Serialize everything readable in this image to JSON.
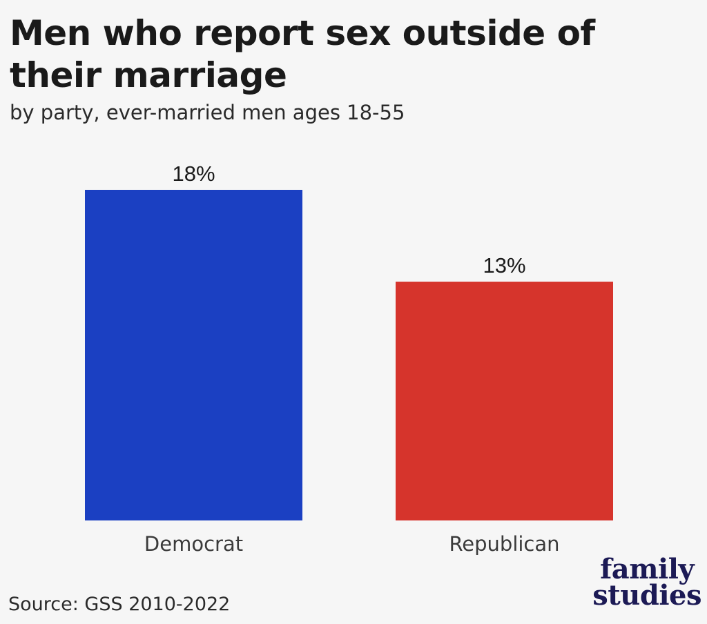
{
  "header": {
    "title": "Men who report sex outside of their marriage",
    "subtitle": "by party, ever-married men ages 18-55"
  },
  "chart_data": {
    "type": "bar",
    "categories": [
      "Democrat",
      "Republican"
    ],
    "values": [
      18,
      13
    ],
    "value_labels": [
      "18%",
      "13%"
    ],
    "colors": [
      "#1b40c2",
      "#d6342c"
    ],
    "title": "Men who report sex outside of their marriage",
    "subtitle": "by party, ever-married men ages 18-55",
    "ylim": [
      0,
      18
    ],
    "grid": false,
    "legend": "none"
  },
  "footer": {
    "source": "Source: GSS 2010-2022",
    "logo_line1": "family",
    "logo_line2": "studies",
    "logo_color": "#1c1a55"
  }
}
